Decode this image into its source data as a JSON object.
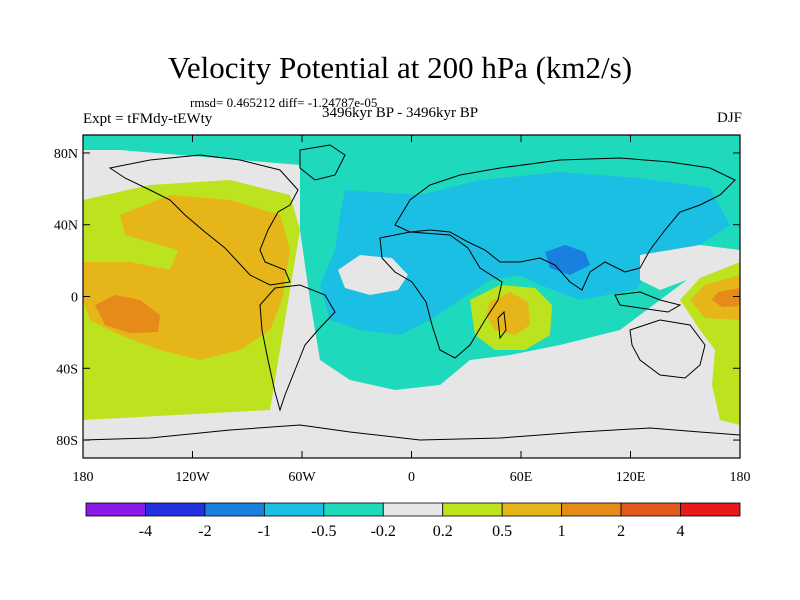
{
  "title": "Velocity Potential at 200 hPa (km2/s)",
  "stats": "rmsd= 0.465212 diff= -1.24787e-05",
  "left_string": "Expt = tFMdy-tEWty",
  "center_string": "3496kyr BP - 3496kyr BP",
  "right_string": "DJF",
  "chart_data": {
    "type": "heatmap",
    "title": "Velocity Potential at 200 hPa (km2/s)",
    "projection": "cylindrical-equidistant",
    "x": {
      "min": -180,
      "max": 180,
      "ticks": [
        -180,
        -120,
        -60,
        0,
        60,
        120,
        180
      ],
      "tick_labels": [
        "180",
        "120W",
        "60W",
        "0",
        "60E",
        "120E",
        "180"
      ]
    },
    "y": {
      "min": -90,
      "max": 90,
      "ticks": [
        80,
        40,
        0,
        -40,
        -80
      ],
      "tick_labels": [
        "80N",
        "40N",
        "0",
        "40S",
        "80S"
      ]
    },
    "colorbar": {
      "levels": [
        -4,
        -2,
        -1,
        -0.5,
        -0.2,
        0.2,
        0.5,
        1,
        2,
        4
      ],
      "labels": [
        "-4",
        "-2",
        "-1",
        "-0.5",
        "-0.2",
        "0.2",
        "0.5",
        "1",
        "2",
        "4"
      ],
      "colors": [
        "#8c1ae6",
        "#2330e0",
        "#1a80df",
        "#1bbfe3",
        "#1fd9bd",
        "#e6e6e6",
        "#bde31f",
        "#e5b51a",
        "#e68a1a",
        "#e35b1a",
        "#e61a1a"
      ]
    },
    "regions": [
      {
        "name": "eastern-hemisphere-negative",
        "range": "-0.5 to -0.2",
        "lon": [
          -70,
          180
        ],
        "lat": [
          -60,
          90
        ]
      },
      {
        "name": "asia-indian-ocean-negative",
        "range": "-1 to -0.5",
        "lon": [
          -30,
          160
        ],
        "lat": [
          -30,
          60
        ]
      },
      {
        "name": "south-asia-minimum",
        "range": "-2 to -1",
        "lon": [
          70,
          100
        ],
        "lat": [
          8,
          20
        ]
      },
      {
        "name": "pacific-positive",
        "range": "0.2 to 0.5",
        "lon": [
          -180,
          -70
        ],
        "lat": [
          -60,
          60
        ]
      },
      {
        "name": "pacific-eastern-positive",
        "range": "0.5 to 1",
        "lon": [
          -180,
          -70
        ],
        "lat": [
          -30,
          50
        ]
      },
      {
        "name": "pacific-maximum",
        "range": "1 to 2",
        "lon": [
          -175,
          -145
        ],
        "lat": [
          -25,
          -5
        ]
      },
      {
        "name": "madagascar-positive",
        "range": "0.5 to 1",
        "lon": [
          35,
          60
        ],
        "lat": [
          -25,
          -5
        ]
      },
      {
        "name": "west-pacific-positive",
        "range": "0.5 to 1",
        "lon": [
          150,
          180
        ],
        "lat": [
          -25,
          10
        ]
      }
    ]
  }
}
